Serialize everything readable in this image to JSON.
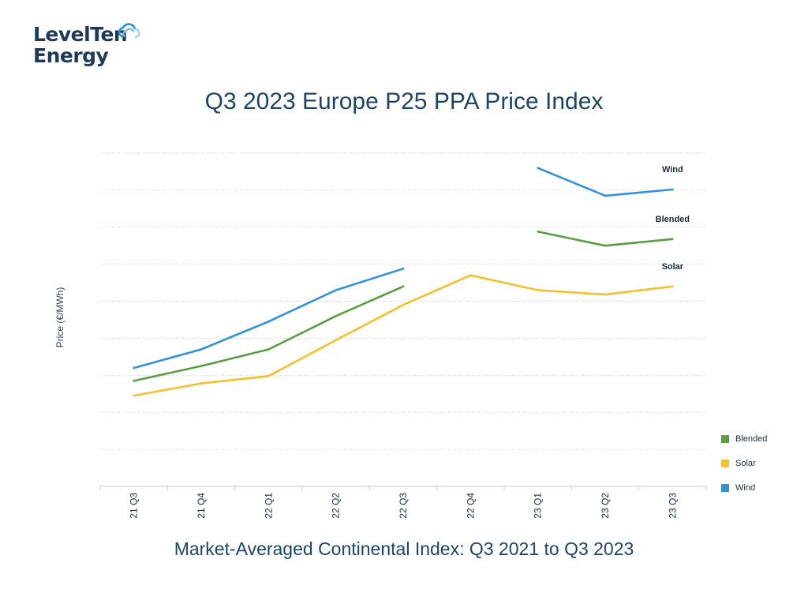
{
  "logo": {
    "line1": "LevelTen",
    "line2": "Energy",
    "icon": "cloud-icon",
    "color": "#1e3a56",
    "accent": "#2c8fd6"
  },
  "title": "Q3 2023 Europe P25 PPA Price Index",
  "subtitle": "Market-Averaged Continental Index: Q3 2021 to Q3 2023",
  "chart_data": {
    "type": "line",
    "title": "Q3 2023 Europe P25 PPA Price Index",
    "subtitle": "Market-Averaged Continental Index: Q3 2021 to Q3 2023",
    "xlabel": "",
    "ylabel": "Price (€/MWh)",
    "y_tick_labels_shown": false,
    "ylim": [
      0,
      9
    ],
    "y_gridlines": [
      1,
      2,
      3,
      4,
      5,
      6,
      7,
      8,
      9
    ],
    "grid": true,
    "legend_position": "bottom-right",
    "categories": [
      "21 Q3",
      "21 Q4",
      "22 Q1",
      "22 Q2",
      "22 Q3",
      "22 Q4",
      "23 Q1",
      "23 Q2",
      "23 Q3"
    ],
    "series": [
      {
        "name": "Wind",
        "color": "#3590d8",
        "values": [
          3.2,
          3.7,
          4.45,
          5.3,
          5.88,
          null,
          8.6,
          7.85,
          8.02
        ]
      },
      {
        "name": "Blended",
        "color": "#5a9e43",
        "values": [
          2.85,
          3.25,
          3.7,
          4.6,
          5.4,
          null,
          6.88,
          6.5,
          6.68
        ]
      },
      {
        "name": "Solar",
        "color": "#f2c12e",
        "values": [
          2.45,
          2.78,
          2.98,
          3.95,
          4.9,
          5.7,
          5.3,
          5.18,
          5.4
        ]
      }
    ],
    "line_labels": [
      "Wind",
      "Blended",
      "Solar"
    ],
    "legend": [
      "Blended",
      "Solar",
      "Wind"
    ]
  }
}
